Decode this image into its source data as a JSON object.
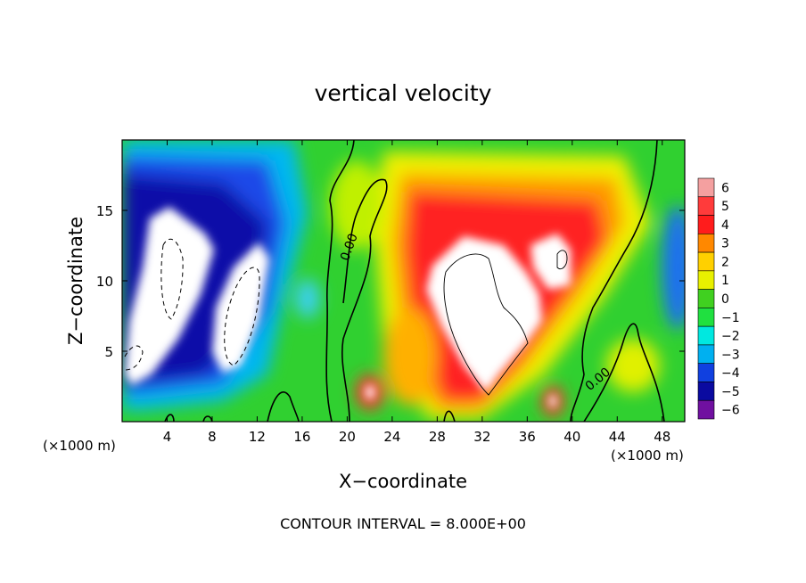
{
  "chart_data": {
    "type": "heatmap",
    "title": "vertical velocity",
    "xlabel": "X−coordinate",
    "ylabel": "Z−coordinate",
    "x_unit_left": "(×1000 m)",
    "x_unit_right": "(×1000 m)",
    "xlim": [
      0,
      50
    ],
    "ylim": [
      0,
      20
    ],
    "x_ticks": [
      4,
      8,
      12,
      16,
      20,
      24,
      28,
      32,
      36,
      40,
      44,
      48
    ],
    "y_ticks": [
      5,
      10,
      15
    ],
    "colorbar": {
      "levels": [
        6,
        5,
        4,
        3,
        2,
        1,
        0,
        -1,
        -2,
        -3,
        -4,
        -5,
        -6
      ],
      "labels": [
        "6",
        "5",
        "4",
        "3",
        "2",
        "1",
        "0",
        "−1",
        "−2",
        "−3",
        "−4",
        "−5",
        "−6"
      ],
      "colors": [
        "#f4a0a0",
        "#ff3b3b",
        "#ff1c1c",
        "#ff8800",
        "#ffd000",
        "#e8f000",
        "#40d020",
        "#20e040",
        "#00e8e0",
        "#00b0f0",
        "#1040e0",
        "#0a0aa0",
        "#7010a0"
      ]
    },
    "contour_labels": [
      {
        "text": "0.00",
        "x": 20.5,
        "y": 12.3,
        "rotate": -70
      },
      {
        "text": "0.00",
        "x": 42.5,
        "y": 2.8,
        "rotate": -40
      }
    ],
    "footnote": "CONTOUR INTERVAL = 8.000E+00",
    "grid": false,
    "legend": "colorbar right"
  }
}
